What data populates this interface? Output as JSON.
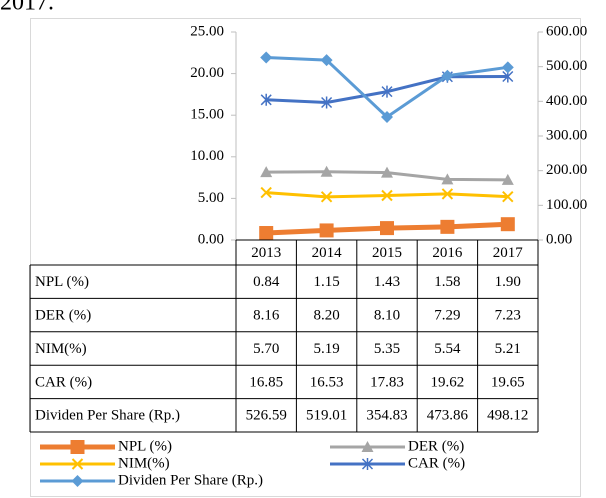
{
  "page_text": "2017.",
  "chart_data": {
    "type": "line",
    "categories": [
      "2013",
      "2014",
      "2015",
      "2016",
      "2017"
    ],
    "ylim": [
      0,
      25
    ],
    "yticks": [
      {
        "value": 0,
        "label": "0.00"
      },
      {
        "value": 5,
        "label": "5.00"
      },
      {
        "value": 10,
        "label": "10.00"
      },
      {
        "value": 15,
        "label": "15.00"
      },
      {
        "value": 20,
        "label": "20.00"
      },
      {
        "value": 25,
        "label": "25.00"
      }
    ],
    "y2lim": [
      0,
      600
    ],
    "y2ticks": [
      {
        "value": 0,
        "label": "0.00"
      },
      {
        "value": 100,
        "label": "100.00"
      },
      {
        "value": 200,
        "label": "200.00"
      },
      {
        "value": 300,
        "label": "300.00"
      },
      {
        "value": 400,
        "label": "400.00"
      },
      {
        "value": 500,
        "label": "500.00"
      },
      {
        "value": 600,
        "label": "600.00"
      }
    ],
    "grid": false,
    "series": [
      {
        "name": "NPL (%)",
        "color": "#ed7d31",
        "marker": "square",
        "values": [
          0.84,
          1.15,
          1.43,
          1.58,
          1.9
        ],
        "value_labels": [
          "0.84",
          "1.15",
          "1.43",
          "1.58",
          "1.90"
        ]
      },
      {
        "name": "DER (%)",
        "color": "#a5a5a5",
        "marker": "triangle",
        "values": [
          8.16,
          8.2,
          8.1,
          7.29,
          7.23
        ],
        "value_labels": [
          "8.16",
          "8.20",
          "8.10",
          "7.29",
          "7.23"
        ]
      },
      {
        "name": "NIM(%)",
        "color": "#ffc000",
        "marker": "x",
        "values": [
          5.7,
          5.19,
          5.35,
          5.54,
          5.21
        ],
        "value_labels": [
          "5.70",
          "5.19",
          "5.35",
          "5.54",
          "5.21"
        ]
      },
      {
        "name": "CAR (%)",
        "color": "#4472c4",
        "marker": "star",
        "values": [
          16.85,
          16.53,
          17.83,
          19.62,
          19.65
        ],
        "value_labels": [
          "16.85",
          "16.53",
          "17.83",
          "19.62",
          "19.65"
        ]
      },
      {
        "name": "Dividen Per Share (Rp.)",
        "color": "#5b9bd5",
        "marker": "diamond",
        "axis": "y2",
        "values": [
          526.59,
          519.01,
          354.83,
          473.86,
          498.12
        ],
        "value_labels": [
          "526.59",
          "519.01",
          "354.83",
          "473.86",
          "498.12"
        ]
      }
    ]
  }
}
